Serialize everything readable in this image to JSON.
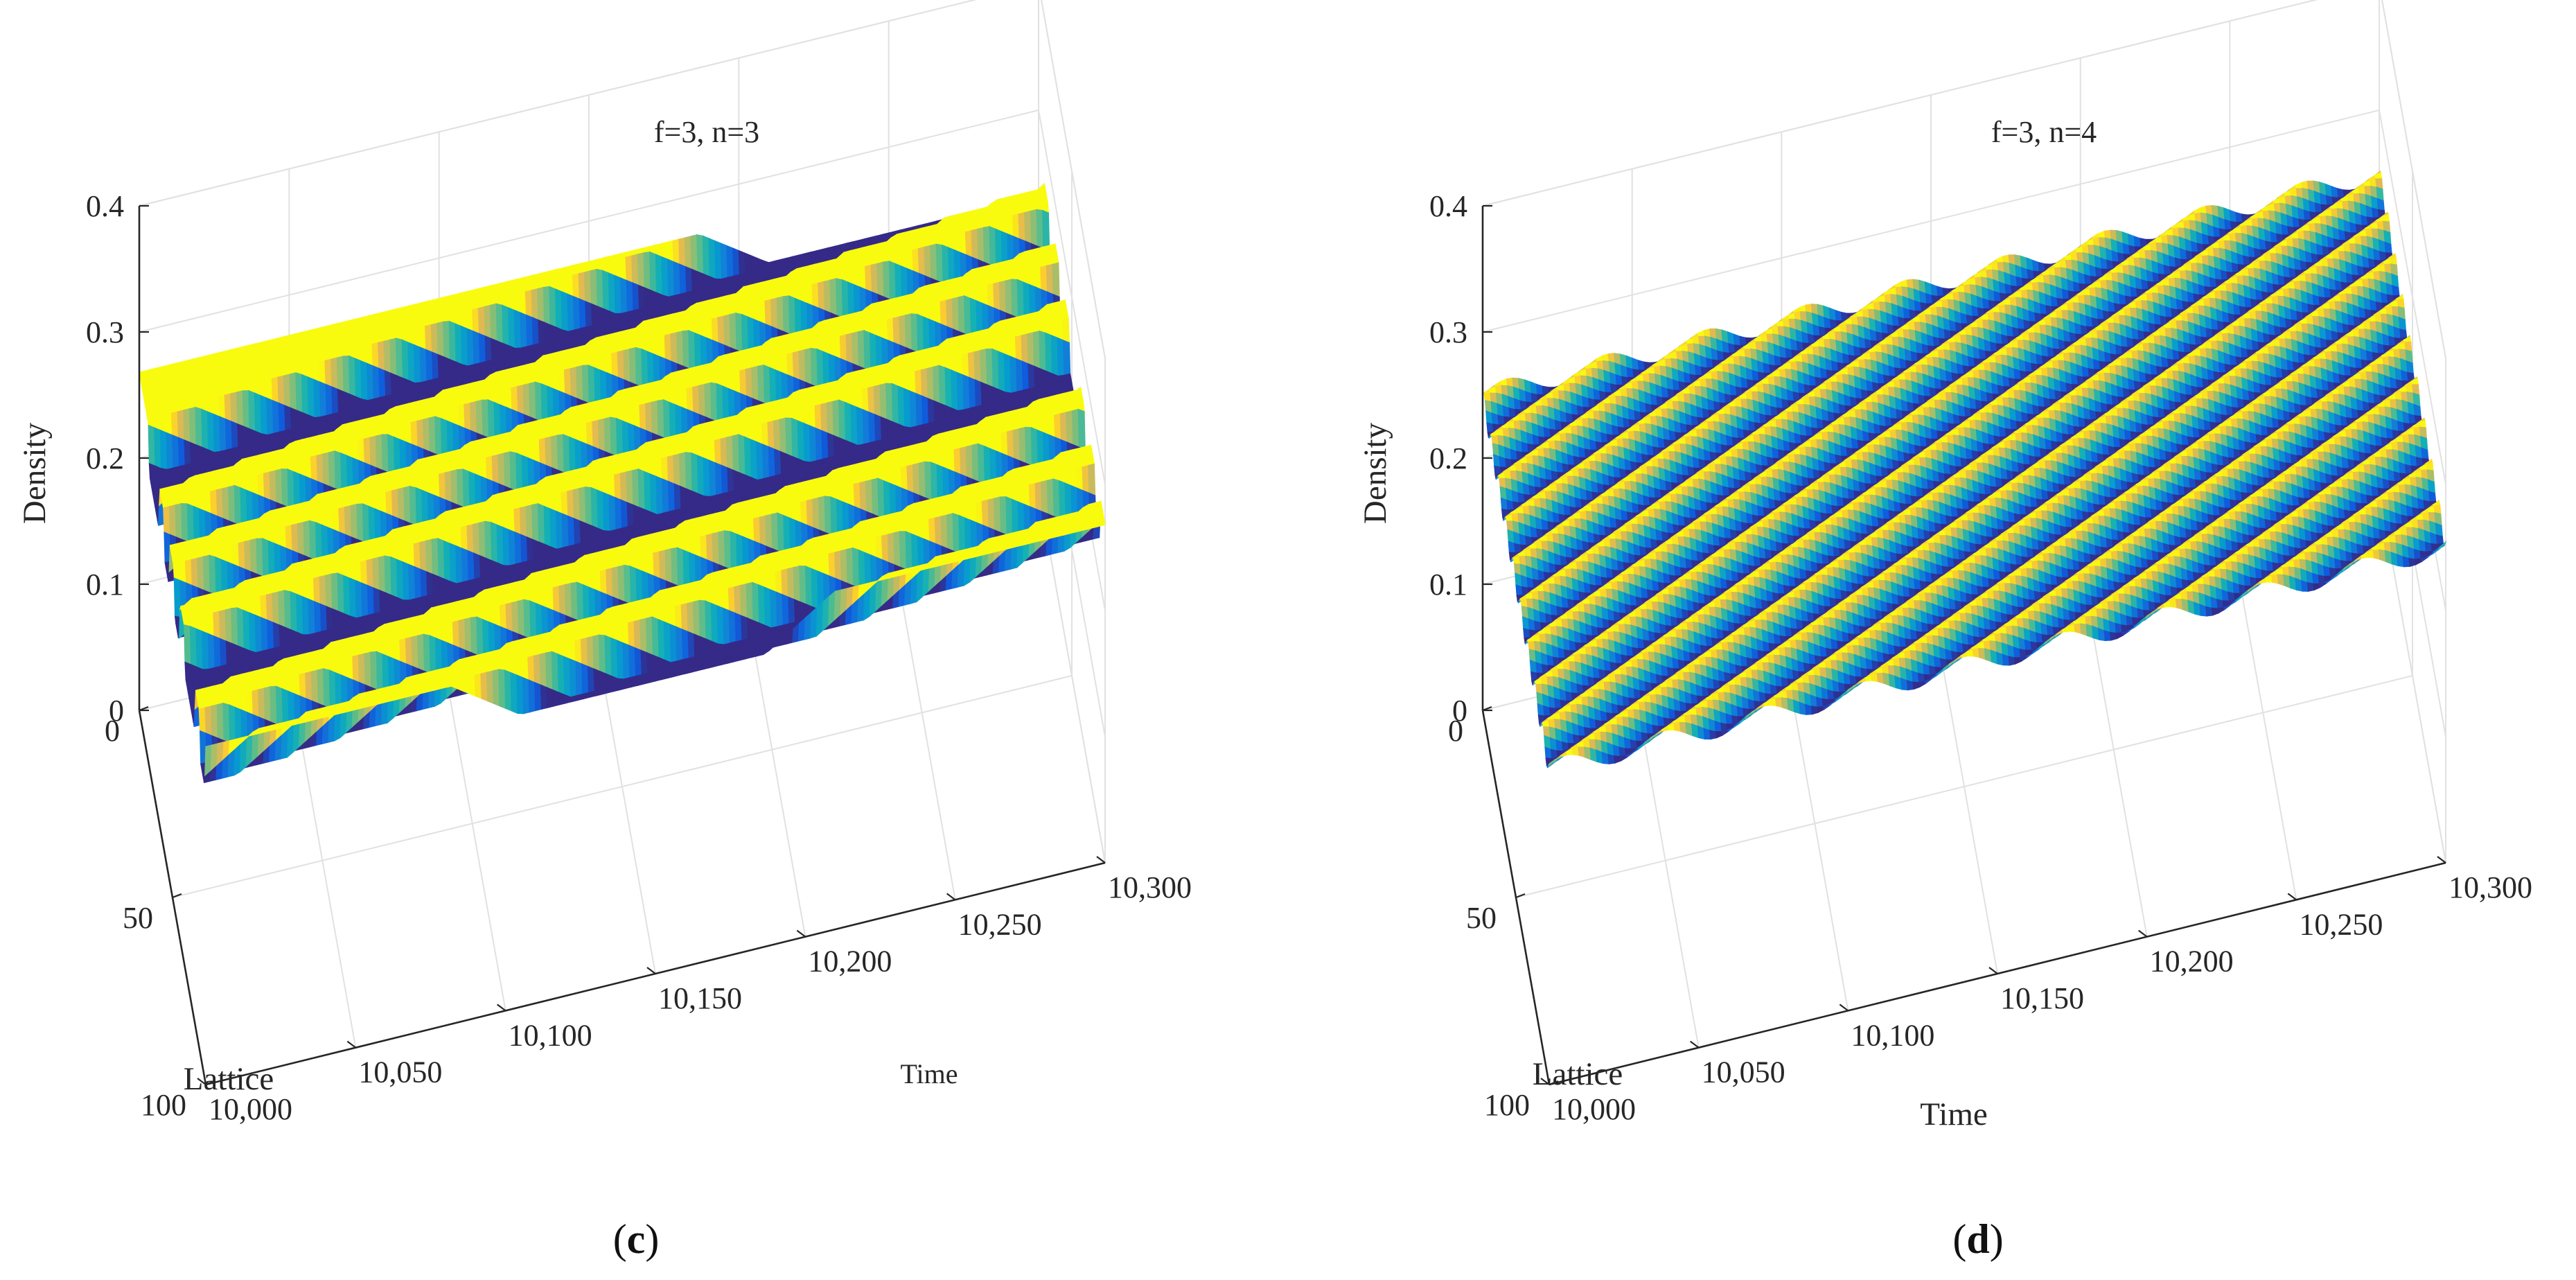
{
  "chart_data": [
    {
      "id": "c",
      "type": "surface",
      "panel_label": "c",
      "title": "f=3, n=3",
      "xlabel": "Time",
      "ylabel": "Lattice",
      "zlabel": "Density",
      "xlim": [
        10000,
        10300
      ],
      "ylim": [
        0,
        100
      ],
      "zlim": [
        0,
        0.4
      ],
      "xticks": [
        10000,
        10050,
        10100,
        10150,
        10200,
        10250,
        10300
      ],
      "xtick_labels": [
        "10,000",
        "10,050",
        "10,100",
        "10,150",
        "10,200",
        "10,250",
        "10,300"
      ],
      "yticks": [
        0,
        50,
        100
      ],
      "ytick_labels": [
        "0",
        "50",
        "100"
      ],
      "zticks": [
        0,
        0.1,
        0.2,
        0.3,
        0.4
      ],
      "ztick_labels": [
        "0",
        "0.1",
        "0.2",
        "0.3",
        "0.4"
      ],
      "grid": true,
      "colormap": "parula",
      "surface": {
        "base_density": 0.25,
        "wave_amplitude": 0.018,
        "profile": "kink",
        "phase_index": [
          0.0,
          0.35,
          0.5,
          0.8,
          1.0,
          1.15,
          1.32,
          1.55,
          1.68,
          2.0,
          2.25,
          2.42,
          2.6,
          2.72,
          2.9,
          3.0
        ],
        "band_values": [
          1,
          1,
          0,
          0,
          1,
          0,
          1,
          0,
          1,
          0,
          0,
          1,
          0,
          1,
          0,
          1
        ]
      }
    },
    {
      "id": "d",
      "type": "surface",
      "panel_label": "d",
      "title": "f=3, n=4",
      "xlabel": "Time",
      "ylabel": "Lattice",
      "zlabel": "Density",
      "xlim": [
        10000,
        10300
      ],
      "ylim": [
        0,
        100
      ],
      "zlim": [
        0,
        0.4
      ],
      "xticks": [
        10000,
        10050,
        10100,
        10150,
        10200,
        10250,
        10300
      ],
      "xtick_labels": [
        "10,000",
        "10,050",
        "10,100",
        "10,150",
        "10,200",
        "10,250",
        "10,300"
      ],
      "yticks": [
        0,
        50,
        100
      ],
      "ytick_labels": [
        "0",
        "50",
        "100"
      ],
      "zticks": [
        0,
        0.1,
        0.2,
        0.3,
        0.4
      ],
      "ztick_labels": [
        "0",
        "0.1",
        "0.2",
        "0.3",
        "0.4"
      ],
      "grid": true,
      "colormap": "parula",
      "surface": {
        "base_density": 0.25,
        "wave_amplitude": 0.008,
        "profile": "smooth",
        "wavelength_lattice": 11,
        "wave_speed": 0.33
      }
    }
  ]
}
